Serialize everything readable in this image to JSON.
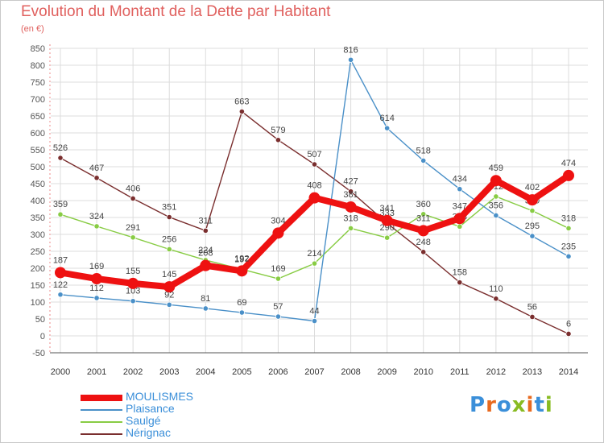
{
  "title": "Evolution du Montant de la Dette par Habitant",
  "unit": "(en €)",
  "logo": "Proxiti",
  "colors": {
    "title": "#e0605e",
    "grid": "#dcdcdc",
    "axis": "#555555",
    "legend_text": "#3b8fd9"
  },
  "chart_data": {
    "type": "line",
    "title": "Evolution du Montant de la Dette par Habitant",
    "xlabel": "",
    "ylabel": "(en €)",
    "ylim": [
      -50,
      850
    ],
    "yticks": [
      -50,
      0,
      50,
      100,
      150,
      200,
      250,
      300,
      350,
      400,
      450,
      500,
      550,
      600,
      650,
      700,
      750,
      800,
      850
    ],
    "grid": true,
    "legend_position": "bottom-left",
    "categories": [
      "2000",
      "2001",
      "2002",
      "2003",
      "2004",
      "2005",
      "2006",
      "2007",
      "2008",
      "2009",
      "2010",
      "2011",
      "2012",
      "2013",
      "2014"
    ],
    "series": [
      {
        "name": "MOULISMES",
        "color": "#ee1111",
        "values": [
          187,
          169,
          155,
          145,
          208,
          192,
          304,
          408,
          381,
          341,
          311,
          347,
          459,
          402,
          474
        ],
        "labels": [
          "187",
          "169",
          "155",
          "145",
          "208",
          "192",
          "304",
          "408",
          "381",
          "341",
          "311",
          "347",
          "459",
          "402",
          "474"
        ]
      },
      {
        "name": "Plaisance",
        "color": "#4a90c8",
        "values": [
          122,
          112,
          103,
          92,
          81,
          69,
          57,
          44,
          816,
          614,
          518,
          434,
          356,
          295,
          235
        ],
        "labels": [
          "122",
          "112",
          "103",
          "92",
          "81",
          "69",
          "57",
          "44",
          "816",
          "614",
          "518",
          "434",
          "356",
          "295",
          "235"
        ]
      },
      {
        "name": "Saulgé",
        "color": "#88cc44",
        "values": [
          359,
          324,
          291,
          256,
          224,
          197,
          169,
          214,
          318,
          290,
          360,
          323,
          412,
          370,
          318
        ],
        "labels": [
          "359",
          "324",
          "291",
          "256",
          "224",
          "197",
          "169",
          "214",
          "318",
          "290",
          "360",
          "323",
          "412",
          "370",
          "318"
        ]
      },
      {
        "name": "Nérignac",
        "color": "#7a2e2e",
        "values": [
          526,
          467,
          406,
          351,
          311,
          663,
          579,
          507,
          427,
          333,
          248,
          158,
          110,
          56,
          6
        ],
        "labels": [
          "526",
          "467",
          "406",
          "351",
          "311",
          "663",
          "579",
          "507",
          "427",
          "333",
          "248",
          "158",
          "110",
          "56",
          "6"
        ]
      }
    ]
  }
}
